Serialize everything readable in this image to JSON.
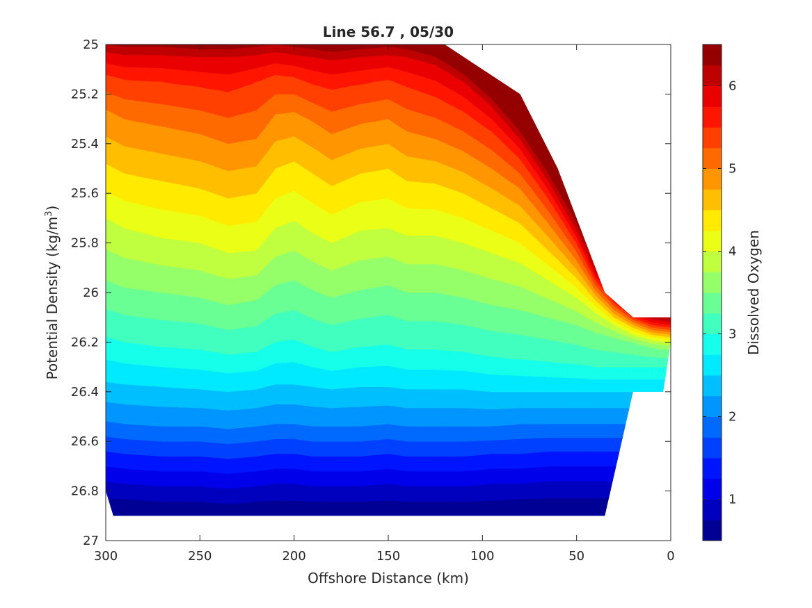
{
  "chart_data": {
    "type": "contour",
    "title": "Line 56.7 , 05/30",
    "xlabel": "Offshore Distance (km)",
    "ylabel_main": "Potential Density (kg/m",
    "ylabel_sup": "3",
    "ylabel_close": ")",
    "xlim": [
      300,
      0
    ],
    "ylim": [
      25,
      27
    ],
    "x_direction": "reversed",
    "y_direction": "reversed",
    "x_ticks": [
      300,
      250,
      200,
      150,
      100,
      50,
      0
    ],
    "x_tick_labels": [
      "300",
      "250",
      "200",
      "150",
      "100",
      "50",
      "0"
    ],
    "y_ticks": [
      25,
      25.2,
      25.4,
      25.6,
      25.8,
      26,
      26.2,
      26.4,
      26.6,
      26.8,
      27
    ],
    "y_tick_labels": [
      "25",
      "25.2",
      "25.4",
      "25.6",
      "25.8",
      "26",
      "26.2",
      "26.4",
      "26.6",
      "26.8",
      "27"
    ],
    "colormap": "jet",
    "colorbar": {
      "label": "Dissolved Oxygen",
      "range": [
        0.5,
        6.5
      ],
      "ticks": [
        1,
        2,
        3,
        4,
        5,
        6
      ],
      "tick_labels": [
        "1",
        "2",
        "3",
        "4",
        "5",
        "6"
      ],
      "levels": [
        0.5,
        0.75,
        1,
        1.25,
        1.5,
        1.75,
        2,
        2.25,
        2.5,
        2.75,
        3,
        3.25,
        3.5,
        3.75,
        4,
        4.25,
        4.5,
        4.75,
        5,
        5.25,
        5.5,
        5.75,
        6,
        6.25,
        6.5
      ]
    },
    "data_extent": {
      "x": [
        300,
        296,
        290,
        280,
        270,
        250,
        230,
        210,
        190,
        170,
        150,
        130,
        120,
        100,
        80,
        60,
        45,
        35,
        20,
        10,
        4,
        0
      ],
      "top_density": [
        25,
        25,
        25,
        25,
        25,
        25,
        25,
        25,
        25,
        25,
        25,
        25,
        25,
        25.1,
        25.2,
        25.5,
        25.8,
        26.0,
        26.1,
        26.1,
        26.1,
        26.1
      ],
      "bottom_density": [
        26.8,
        26.9,
        26.9,
        26.9,
        26.9,
        26.9,
        26.9,
        26.9,
        26.9,
        26.9,
        26.9,
        26.9,
        26.9,
        26.9,
        26.9,
        26.9,
        26.9,
        26.9,
        26.4,
        26.4,
        26.4,
        26.2
      ]
    },
    "oxygen_isolines": {
      "x": [
        300,
        290,
        270,
        250,
        235,
        220,
        210,
        200,
        190,
        180,
        165,
        150,
        140,
        125,
        110,
        95,
        80,
        65,
        50,
        40,
        30,
        20,
        10,
        0
      ],
      "levels": [
        {
          "value": 6.0,
          "density": [
            25.03,
            25.04,
            25.04,
            25.05,
            25.05,
            25.04,
            25.03,
            25.04,
            25.05,
            25.06,
            25.05,
            25.04,
            25.05,
            25.08,
            25.15,
            25.25,
            25.38,
            25.55,
            25.75,
            25.92,
            26.02,
            26.08,
            26.11,
            26.12
          ]
        },
        {
          "value": 5.5,
          "density": [
            25.12,
            25.14,
            25.15,
            25.17,
            25.19,
            25.15,
            25.12,
            25.13,
            25.16,
            25.18,
            25.16,
            25.14,
            25.17,
            25.21,
            25.27,
            25.35,
            25.46,
            25.62,
            25.8,
            25.95,
            26.04,
            26.1,
            26.13,
            26.14
          ]
        },
        {
          "value": 5.0,
          "density": [
            25.26,
            25.3,
            25.33,
            25.36,
            25.4,
            25.38,
            25.28,
            25.27,
            25.31,
            25.36,
            25.32,
            25.3,
            25.35,
            25.38,
            25.43,
            25.5,
            25.58,
            25.72,
            25.87,
            25.99,
            26.07,
            26.12,
            26.15,
            26.16
          ]
        },
        {
          "value": 4.5,
          "density": [
            25.48,
            25.52,
            25.55,
            25.58,
            25.62,
            25.6,
            25.5,
            25.47,
            25.52,
            25.57,
            25.52,
            25.5,
            25.55,
            25.56,
            25.6,
            25.66,
            25.72,
            25.83,
            25.94,
            26.03,
            26.1,
            26.14,
            26.17,
            26.18
          ]
        },
        {
          "value": 4.0,
          "density": [
            25.7,
            25.74,
            25.78,
            25.8,
            25.84,
            25.83,
            25.74,
            25.71,
            25.76,
            25.8,
            25.75,
            25.74,
            25.77,
            25.77,
            25.8,
            25.84,
            25.88,
            25.95,
            26.02,
            26.08,
            26.13,
            26.17,
            26.19,
            26.2
          ]
        },
        {
          "value": 3.5,
          "density": [
            25.95,
            25.98,
            26.0,
            26.02,
            26.05,
            26.03,
            25.97,
            25.95,
            25.99,
            26.02,
            25.99,
            25.97,
            26.0,
            26.0,
            26.02,
            26.05,
            26.07,
            26.1,
            26.13,
            26.16,
            26.18,
            26.2,
            26.22,
            26.23
          ]
        },
        {
          "value": 3.0,
          "density": [
            26.18,
            26.2,
            26.22,
            26.23,
            26.25,
            26.24,
            26.2,
            26.19,
            26.22,
            26.24,
            26.22,
            26.21,
            26.23,
            26.23,
            26.24,
            26.26,
            26.27,
            26.28,
            26.29,
            26.3,
            26.3,
            26.3,
            26.3,
            26.3
          ]
        },
        {
          "value": 2.5,
          "density": [
            26.36,
            26.37,
            26.38,
            26.39,
            26.4,
            26.39,
            26.37,
            26.37,
            26.38,
            26.39,
            26.38,
            26.38,
            26.39,
            26.39,
            26.39,
            26.4,
            26.4,
            26.4,
            26.4,
            26.4,
            26.4,
            26.4,
            26.4,
            26.4
          ]
        },
        {
          "value": 2.0,
          "density": [
            26.52,
            26.53,
            26.54,
            26.54,
            26.55,
            26.54,
            26.53,
            26.53,
            26.54,
            26.54,
            26.54,
            26.53,
            26.54,
            26.54,
            26.54,
            26.54,
            26.53,
            26.53,
            26.53,
            26.53,
            26.53,
            26.53,
            26.53,
            26.53
          ]
        },
        {
          "value": 1.5,
          "density": [
            26.64,
            26.65,
            26.66,
            26.66,
            26.67,
            26.66,
            26.65,
            26.65,
            26.66,
            26.66,
            26.66,
            26.65,
            26.66,
            26.66,
            26.66,
            26.65,
            26.65,
            26.64,
            26.64,
            26.64,
            26.64,
            26.64,
            26.64,
            26.64
          ]
        },
        {
          "value": 1.0,
          "density": [
            26.76,
            26.77,
            26.78,
            26.78,
            26.79,
            26.78,
            26.77,
            26.77,
            26.78,
            26.78,
            26.78,
            26.77,
            26.78,
            26.78,
            26.78,
            26.77,
            26.77,
            26.76,
            26.76,
            26.76,
            26.76,
            26.76,
            26.76,
            26.76
          ]
        },
        {
          "value": 0.6,
          "density": [
            26.87,
            26.87,
            26.88,
            26.88,
            26.89,
            26.88,
            26.88,
            26.88,
            26.88,
            26.88,
            26.88,
            26.88,
            26.88,
            26.88,
            26.88,
            26.88,
            26.87,
            26.87,
            26.87,
            26.87,
            26.87,
            26.87,
            26.87,
            26.87
          ]
        }
      ]
    }
  }
}
